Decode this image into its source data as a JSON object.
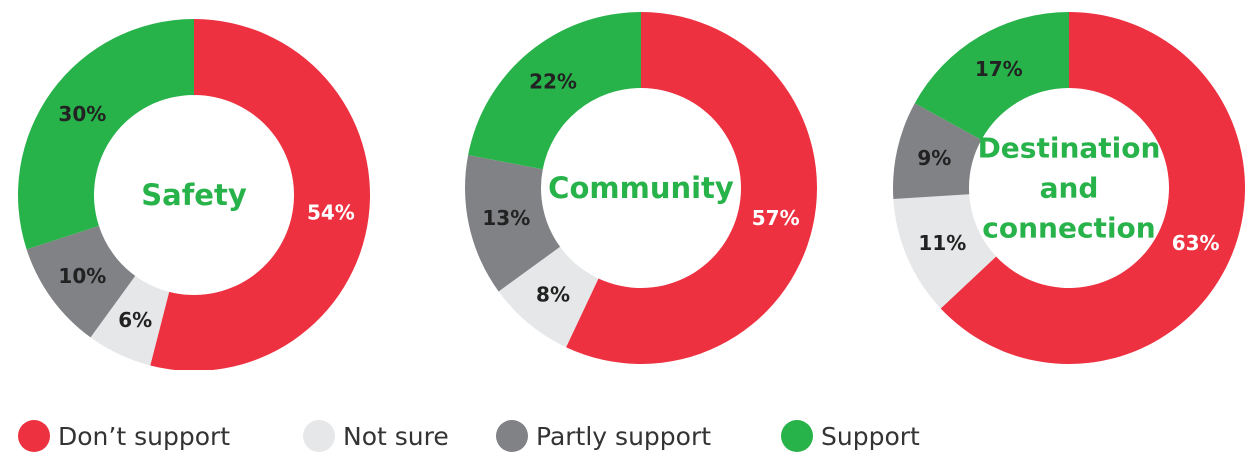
{
  "colors": {
    "dont_support": "#ee3140",
    "not_sure": "#e6e7e8",
    "partly_support": "#818285",
    "support": "#27b24a",
    "title": "#27b24a",
    "label_dark": "#222222",
    "label_light": "#ffffff"
  },
  "legend": [
    {
      "label": "Don’t support",
      "color": "#ee3140"
    },
    {
      "label": "Not sure",
      "color": "#e6e7e8"
    },
    {
      "label": "Partly support",
      "color": "#818285"
    },
    {
      "label": "Support",
      "color": "#27b24a"
    }
  ],
  "chart_data": [
    {
      "type": "pie",
      "variant": "donut",
      "title": "Safety",
      "categories": [
        "Don’t support",
        "Not sure",
        "Partly support",
        "Support"
      ],
      "values": [
        54,
        6,
        10,
        30
      ],
      "labels": [
        "54%",
        "6%",
        "10%",
        "30%"
      ]
    },
    {
      "type": "pie",
      "variant": "donut",
      "title": "Community",
      "categories": [
        "Don’t support",
        "Not sure",
        "Partly support",
        "Support"
      ],
      "values": [
        57,
        8,
        13,
        22
      ],
      "labels": [
        "57%",
        "8%",
        "13%",
        "22%"
      ]
    },
    {
      "type": "pie",
      "variant": "donut",
      "title": "Destination and connection",
      "title_lines": [
        "Destination",
        "and",
        "connection"
      ],
      "categories": [
        "Don’t support",
        "Not sure",
        "Partly support",
        "Support"
      ],
      "values": [
        63,
        11,
        9,
        17
      ],
      "labels": [
        "63%",
        "11%",
        "9%",
        "17%"
      ]
    }
  ]
}
